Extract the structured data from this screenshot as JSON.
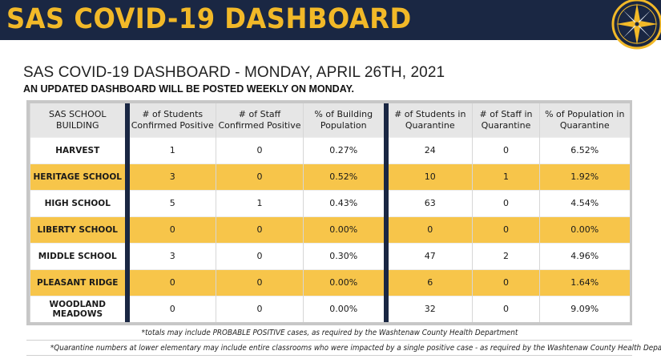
{
  "banner": {
    "title": "SAS COVID-19 DASHBOARD"
  },
  "header": {
    "title": "SAS COVID-19 DASHBOARD - MONDAY, APRIL 26TH, 2021",
    "subtitle": "AN UPDATED DASHBOARD WILL BE POSTED WEEKLY ON MONDAY."
  },
  "colors": {
    "navy": "#1a2743",
    "gold": "#f2b928",
    "row_highlight": "#f7c54a"
  },
  "logo": {
    "icon": "compass-rose-icon"
  },
  "table": {
    "headers": [
      "SAS SCHOOL BUILDING",
      "# of Students Confirmed Positive",
      "# of Staff Confirmed Positive",
      "% of Building Population",
      "# of Students in Quarantine",
      "# of Staff in Quarantine",
      "% of Population in Quarantine"
    ],
    "rows": [
      [
        "HARVEST",
        "1",
        "0",
        "0.27%",
        "24",
        "0",
        "6.52%"
      ],
      [
        "HERITAGE SCHOOL",
        "3",
        "0",
        "0.52%",
        "10",
        "1",
        "1.92%"
      ],
      [
        "HIGH SCHOOL",
        "5",
        "1",
        "0.43%",
        "63",
        "0",
        "4.54%"
      ],
      [
        "LIBERTY SCHOOL",
        "0",
        "0",
        "0.00%",
        "0",
        "0",
        "0.00%"
      ],
      [
        "MIDDLE SCHOOL",
        "3",
        "0",
        "0.30%",
        "47",
        "2",
        "4.96%"
      ],
      [
        "PLEASANT RIDGE",
        "0",
        "0",
        "0.00%",
        "6",
        "0",
        "1.64%"
      ],
      [
        "WOODLAND MEADOWS",
        "0",
        "0",
        "0.00%",
        "32",
        "0",
        "9.09%"
      ]
    ]
  },
  "notes": {
    "totals": "*totals may include PROBABLE POSITIVE cases, as required by the Washtenaw County Health Department",
    "quarantine": "*Quarantine numbers at lower elementary may include entire classrooms who were impacted by a single positive case - as required by the Washtenaw County Health Department"
  }
}
